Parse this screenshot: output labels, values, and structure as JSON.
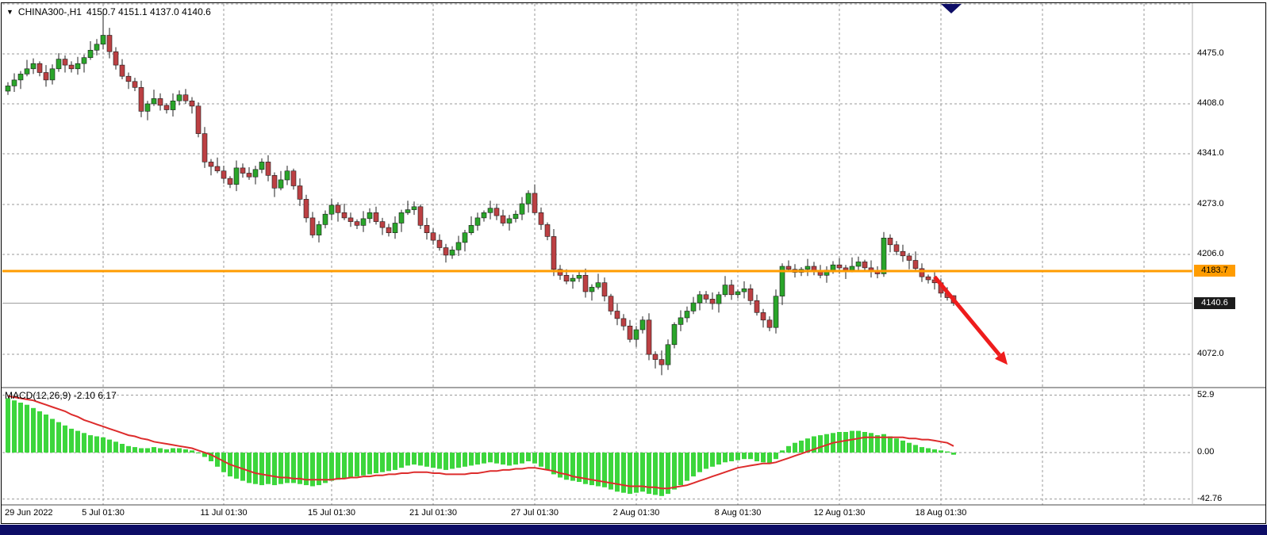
{
  "window": {
    "symbol": "CHINA300-,H1",
    "ohlc": "4150.7 4151.1 4137.0 4140.6",
    "dropdown_icon": "▼"
  },
  "colors": {
    "bull": "#2aa52a",
    "bear": "#bc4043",
    "macd_hist": "#3cd63c",
    "macd_signal": "#dd2c2c",
    "price_line": "#ff9c00",
    "current_tag_bg": "#1c1c1c",
    "arrow": "#ee1c1c",
    "grid": "#9a9a9a",
    "bottom_bar": "#0d0d66"
  },
  "chart_data": {
    "type": "candlestick",
    "title": "CHINA300-,H1",
    "timeframe": "H1",
    "indicator": "MACD(12,26,9)",
    "last_candle_ohlc": {
      "open": 4150.7,
      "high": 4151.1,
      "low": 4137.0,
      "close": 4140.6
    },
    "price_axis_ticks": [
      "4475.0",
      "4408.0",
      "4341.0",
      "4273.0",
      "4206.0",
      "4072.0"
    ],
    "price_axis_values": [
      4475,
      4408,
      4341,
      4273,
      4206,
      4072
    ],
    "price_range_visible": [
      4028,
      4542
    ],
    "horizontal_line": {
      "value": 4183.7,
      "label": "4183.7"
    },
    "current_price": {
      "value": 4140.6,
      "label": "4140.6"
    },
    "annotation_arrow": {
      "from_i": 146,
      "from_price": 4176,
      "to_i": 157.5,
      "to_price": 4058
    },
    "time_labels": [
      {
        "label": "29 Jun 2022",
        "i": 0
      },
      {
        "label": "5 Jul 01:30",
        "i": 15
      },
      {
        "label": "11 Jul 01:30",
        "i": 34
      },
      {
        "label": "15 Jul 01:30",
        "i": 51
      },
      {
        "label": "21 Jul 01:30",
        "i": 67
      },
      {
        "label": "27 Jul 01:30",
        "i": 83
      },
      {
        "label": "2 Aug 01:30",
        "i": 99
      },
      {
        "label": "8 Aug 01:30",
        "i": 115
      },
      {
        "label": "12 Aug 01:30",
        "i": 131
      },
      {
        "label": "18 Aug 01:30",
        "i": 147
      }
    ],
    "candles": [
      [
        4425,
        4437,
        4420,
        4432
      ],
      [
        4432,
        4449,
        4424,
        4440
      ],
      [
        4440,
        4452,
        4428,
        4448
      ],
      [
        4448,
        4467,
        4445,
        4455
      ],
      [
        4455,
        4469,
        4448,
        4462
      ],
      [
        4462,
        4465,
        4445,
        4450
      ],
      [
        4450,
        4460,
        4431,
        4440
      ],
      [
        4440,
        4461,
        4434,
        4455
      ],
      [
        4455,
        4476,
        4451,
        4468
      ],
      [
        4468,
        4473,
        4450,
        4460
      ],
      [
        4460,
        4465,
        4450,
        4455
      ],
      [
        4455,
        4471,
        4447,
        4462
      ],
      [
        4462,
        4474,
        4450,
        4470
      ],
      [
        4470,
        4492,
        4467,
        4480
      ],
      [
        4480,
        4495,
        4473,
        4488
      ],
      [
        4488,
        4532,
        4481,
        4500
      ],
      [
        4500,
        4510,
        4469,
        4478
      ],
      [
        4478,
        4484,
        4454,
        4460
      ],
      [
        4460,
        4468,
        4441,
        4445
      ],
      [
        4445,
        4450,
        4428,
        4438
      ],
      [
        4438,
        4443,
        4425,
        4430
      ],
      [
        4430,
        4439,
        4390,
        4398
      ],
      [
        4398,
        4412,
        4386,
        4408
      ],
      [
        4408,
        4427,
        4405,
        4415
      ],
      [
        4415,
        4422,
        4399,
        4406
      ],
      [
        4406,
        4409,
        4395,
        4400
      ],
      [
        4400,
        4422,
        4391,
        4412
      ],
      [
        4412,
        4426,
        4406,
        4420
      ],
      [
        4420,
        4428,
        4408,
        4412
      ],
      [
        4412,
        4417,
        4395,
        4405
      ],
      [
        4405,
        4410,
        4363,
        4368
      ],
      [
        4368,
        4377,
        4322,
        4330
      ],
      [
        4330,
        4334,
        4312,
        4324
      ],
      [
        4324,
        4336,
        4315,
        4318
      ],
      [
        4318,
        4325,
        4301,
        4308
      ],
      [
        4308,
        4311,
        4295,
        4300
      ],
      [
        4300,
        4332,
        4291,
        4322
      ],
      [
        4322,
        4328,
        4309,
        4315
      ],
      [
        4315,
        4323,
        4306,
        4310
      ],
      [
        4310,
        4325,
        4300,
        4320
      ],
      [
        4320,
        4335,
        4315,
        4330
      ],
      [
        4330,
        4339,
        4304,
        4312
      ],
      [
        4312,
        4316,
        4283,
        4295
      ],
      [
        4295,
        4318,
        4292,
        4306
      ],
      [
        4306,
        4325,
        4299,
        4318
      ],
      [
        4318,
        4321,
        4293,
        4298
      ],
      [
        4298,
        4308,
        4271,
        4280
      ],
      [
        4280,
        4286,
        4249,
        4255
      ],
      [
        4255,
        4263,
        4228,
        4232
      ],
      [
        4232,
        4251,
        4222,
        4246
      ],
      [
        4246,
        4265,
        4241,
        4260
      ],
      [
        4260,
        4281,
        4252,
        4272
      ],
      [
        4272,
        4276,
        4250,
        4262
      ],
      [
        4262,
        4274,
        4252,
        4255
      ],
      [
        4255,
        4262,
        4243,
        4250
      ],
      [
        4250,
        4253,
        4240,
        4245
      ],
      [
        4245,
        4264,
        4236,
        4254
      ],
      [
        4254,
        4268,
        4248,
        4262
      ],
      [
        4262,
        4270,
        4246,
        4250
      ],
      [
        4250,
        4255,
        4232,
        4242
      ],
      [
        4242,
        4247,
        4230,
        4235
      ],
      [
        4235,
        4257,
        4227,
        4248
      ],
      [
        4248,
        4266,
        4236,
        4262
      ],
      [
        4262,
        4278,
        4259,
        4266
      ],
      [
        4266,
        4277,
        4259,
        4270
      ],
      [
        4270,
        4273,
        4240,
        4245
      ],
      [
        4245,
        4255,
        4226,
        4235
      ],
      [
        4235,
        4241,
        4219,
        4225
      ],
      [
        4225,
        4233,
        4211,
        4215
      ],
      [
        4215,
        4220,
        4195,
        4205
      ],
      [
        4205,
        4217,
        4200,
        4212
      ],
      [
        4212,
        4231,
        4204,
        4222
      ],
      [
        4222,
        4239,
        4210,
        4235
      ],
      [
        4235,
        4257,
        4232,
        4245
      ],
      [
        4245,
        4262,
        4238,
        4255
      ],
      [
        4255,
        4265,
        4250,
        4262
      ],
      [
        4262,
        4278,
        4253,
        4268
      ],
      [
        4268,
        4274,
        4252,
        4258
      ],
      [
        4258,
        4266,
        4244,
        4248
      ],
      [
        4248,
        4259,
        4238,
        4254
      ],
      [
        4254,
        4265,
        4249,
        4260
      ],
      [
        4260,
        4283,
        4252,
        4274
      ],
      [
        4274,
        4292,
        4262,
        4288
      ],
      [
        4288,
        4300,
        4259,
        4262
      ],
      [
        4262,
        4269,
        4239,
        4246
      ],
      [
        4246,
        4249,
        4225,
        4230
      ],
      [
        4230,
        4240,
        4177,
        4186
      ],
      [
        4186,
        4192,
        4172,
        4178
      ],
      [
        4178,
        4186,
        4166,
        4170
      ],
      [
        4170,
        4179,
        4160,
        4174
      ],
      [
        4174,
        4183,
        4169,
        4178
      ],
      [
        4178,
        4187,
        4148,
        4156
      ],
      [
        4156,
        4166,
        4144,
        4162
      ],
      [
        4162,
        4180,
        4159,
        4168
      ],
      [
        4168,
        4175,
        4143,
        4150
      ],
      [
        4150,
        4153,
        4125,
        4130
      ],
      [
        4130,
        4140,
        4111,
        4120
      ],
      [
        4120,
        4126,
        4104,
        4110
      ],
      [
        4110,
        4118,
        4088,
        4092
      ],
      [
        4092,
        4110,
        4082,
        4105
      ],
      [
        4105,
        4123,
        4100,
        4118
      ],
      [
        4118,
        4127,
        4064,
        4072
      ],
      [
        4072,
        4076,
        4053,
        4065
      ],
      [
        4065,
        4077,
        4044,
        4058
      ],
      [
        4058,
        4092,
        4051,
        4085
      ],
      [
        4085,
        4115,
        4080,
        4112
      ],
      [
        4112,
        4131,
        4103,
        4121
      ],
      [
        4121,
        4136,
        4115,
        4130
      ],
      [
        4130,
        4149,
        4126,
        4141
      ],
      [
        4141,
        4157,
        4131,
        4152
      ],
      [
        4152,
        4157,
        4141,
        4146
      ],
      [
        4146,
        4155,
        4132,
        4140
      ],
      [
        4140,
        4156,
        4128,
        4152
      ],
      [
        4152,
        4177,
        4149,
        4165
      ],
      [
        4165,
        4172,
        4145,
        4152
      ],
      [
        4152,
        4159,
        4147,
        4156
      ],
      [
        4156,
        4170,
        4147,
        4160
      ],
      [
        4160,
        4166,
        4138,
        4144
      ],
      [
        4144,
        4152,
        4124,
        4128
      ],
      [
        4128,
        4133,
        4108,
        4118
      ],
      [
        4118,
        4123,
        4103,
        4108
      ],
      [
        4108,
        4159,
        4100,
        4150
      ],
      [
        4150,
        4194,
        4138,
        4190
      ],
      [
        4190,
        4198,
        4183,
        4186
      ],
      [
        4186,
        4193,
        4175,
        4182
      ],
      [
        4182,
        4189,
        4177,
        4186
      ],
      [
        4186,
        4200,
        4177,
        4190
      ],
      [
        4190,
        4196,
        4178,
        4184
      ],
      [
        4184,
        4192,
        4174,
        4178
      ],
      [
        4178,
        4190,
        4168,
        4185
      ],
      [
        4185,
        4197,
        4180,
        4192
      ],
      [
        4192,
        4201,
        4180,
        4188
      ],
      [
        4188,
        4192,
        4173,
        4185
      ],
      [
        4185,
        4202,
        4182,
        4190
      ],
      [
        4190,
        4203,
        4183,
        4196
      ],
      [
        4196,
        4199,
        4183,
        4188
      ],
      [
        4188,
        4198,
        4175,
        4184
      ],
      [
        4184,
        4190,
        4174,
        4180
      ],
      [
        4180,
        4236,
        4176,
        4228
      ],
      [
        4228,
        4233,
        4209,
        4219
      ],
      [
        4219,
        4224,
        4205,
        4210
      ],
      [
        4210,
        4219,
        4196,
        4204
      ],
      [
        4204,
        4208,
        4186,
        4198
      ],
      [
        4198,
        4210,
        4184,
        4187
      ],
      [
        4187,
        4194,
        4169,
        4176
      ],
      [
        4176,
        4179,
        4167,
        4172
      ],
      [
        4172,
        4182,
        4159,
        4168
      ],
      [
        4168,
        4174,
        4148,
        4154
      ],
      [
        4154,
        4162,
        4144,
        4148
      ],
      [
        4150.7,
        4151.1,
        4137.0,
        4140.6
      ]
    ],
    "macd": {
      "label": "MACD(12,26,9) -2.10 6.17",
      "params": "12,26,9",
      "main_value": -2.1,
      "signal_value": 6.17,
      "axis_ticks": [
        "52.9",
        "0.00",
        "-42.76"
      ],
      "axis_values": [
        52.9,
        0,
        -42.76
      ],
      "histogram": [
        50,
        48,
        46,
        44,
        41,
        38,
        35,
        31,
        28,
        25,
        22,
        20,
        18,
        16,
        15,
        14,
        12,
        10,
        8,
        6,
        5,
        4,
        4,
        5,
        4,
        3,
        4,
        4,
        3,
        2,
        0,
        -4,
        -8,
        -13,
        -18,
        -22,
        -24,
        -26,
        -28,
        -29,
        -30,
        -29,
        -30,
        -29,
        -28,
        -28,
        -29,
        -30,
        -31,
        -30,
        -28,
        -26,
        -25,
        -24,
        -23,
        -22,
        -21,
        -20,
        -19,
        -18,
        -17,
        -16,
        -14,
        -12,
        -11,
        -12,
        -13,
        -14,
        -15,
        -16,
        -15,
        -14,
        -13,
        -12,
        -11,
        -10,
        -9,
        -10,
        -11,
        -12,
        -11,
        -10,
        -8,
        -10,
        -13,
        -16,
        -20,
        -23,
        -25,
        -26,
        -27,
        -29,
        -30,
        -31,
        -32,
        -34,
        -36,
        -37,
        -38,
        -37,
        -36,
        -38,
        -39,
        -40,
        -38,
        -34,
        -30,
        -26,
        -22,
        -18,
        -15,
        -13,
        -11,
        -9,
        -8,
        -7,
        -6,
        -6,
        -8,
        -9,
        -10,
        -6,
        2,
        6,
        9,
        11,
        13,
        15,
        16,
        17,
        18,
        19,
        19,
        20,
        20,
        19,
        18,
        16,
        17,
        15,
        13,
        11,
        9,
        7,
        5,
        4,
        3,
        2,
        1,
        -2
      ],
      "signal": [
        52,
        51,
        50,
        49,
        48,
        46,
        44,
        42,
        40,
        38,
        35,
        33,
        30,
        28,
        26,
        24,
        22,
        20,
        18,
        16,
        15,
        13,
        12,
        10,
        9,
        8,
        7,
        6,
        5,
        4,
        2,
        0,
        -2,
        -5,
        -8,
        -11,
        -13,
        -15,
        -17,
        -19,
        -20,
        -21,
        -22,
        -23,
        -23,
        -24,
        -24,
        -25,
        -25,
        -25,
        -25,
        -25,
        -24,
        -24,
        -23,
        -23,
        -22,
        -22,
        -21,
        -21,
        -20,
        -20,
        -19,
        -19,
        -18,
        -18,
        -18,
        -19,
        -19,
        -20,
        -20,
        -20,
        -20,
        -19,
        -19,
        -18,
        -17,
        -17,
        -16,
        -16,
        -15,
        -15,
        -14,
        -14,
        -15,
        -16,
        -17,
        -19,
        -20,
        -22,
        -23,
        -24,
        -25,
        -26,
        -27,
        -28,
        -29,
        -30,
        -31,
        -31,
        -31,
        -32,
        -32,
        -33,
        -33,
        -32,
        -31,
        -30,
        -28,
        -26,
        -24,
        -22,
        -20,
        -18,
        -16,
        -14,
        -13,
        -12,
        -11,
        -10,
        -10,
        -9,
        -7,
        -5,
        -3,
        -1,
        1,
        3,
        5,
        7,
        9,
        10,
        11,
        12,
        13,
        14,
        14,
        14,
        14,
        14,
        14,
        14,
        13,
        13,
        12,
        12,
        11,
        10,
        9,
        6
      ]
    }
  }
}
